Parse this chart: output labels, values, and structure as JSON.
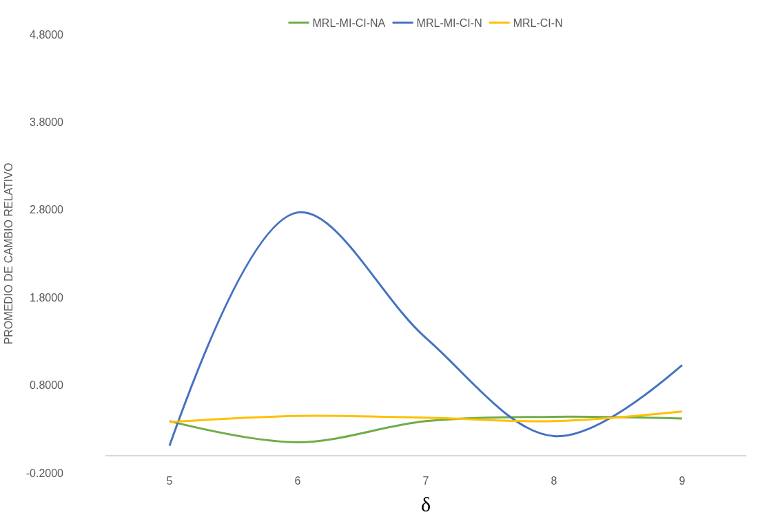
{
  "chart_data": {
    "type": "line",
    "xlabel": "δ",
    "ylabel": "PROMEDIO DE CAMBIO RELATIVO",
    "categories": [
      "5",
      "6",
      "7",
      "8",
      "9"
    ],
    "series": [
      {
        "name": "MRL-MI-CI-NA",
        "color": "#70ad47",
        "values": [
          0.39,
          0.15,
          0.39,
          0.44,
          0.42
        ]
      },
      {
        "name": "MRL-MI-CI-N",
        "color": "#4472c4",
        "values": [
          0.11,
          2.77,
          1.34,
          0.22,
          1.03
        ]
      },
      {
        "name": "MRL-CI-N",
        "color": "#ffc000",
        "values": [
          0.38,
          0.45,
          0.43,
          0.39,
          0.5
        ]
      }
    ],
    "ylim": [
      -0.2,
      4.8
    ],
    "yticks": [
      {
        "value": -0.2,
        "label": "-0.2000"
      },
      {
        "value": 0.8,
        "label": "0.8000"
      },
      {
        "value": 1.8,
        "label": "1.8000"
      },
      {
        "value": 2.8,
        "label": "2.8000"
      },
      {
        "value": 3.8,
        "label": "3.8000"
      },
      {
        "value": 4.8,
        "label": "4.8000"
      }
    ],
    "legend": "top",
    "marker": "none",
    "line_style": "solid"
  }
}
